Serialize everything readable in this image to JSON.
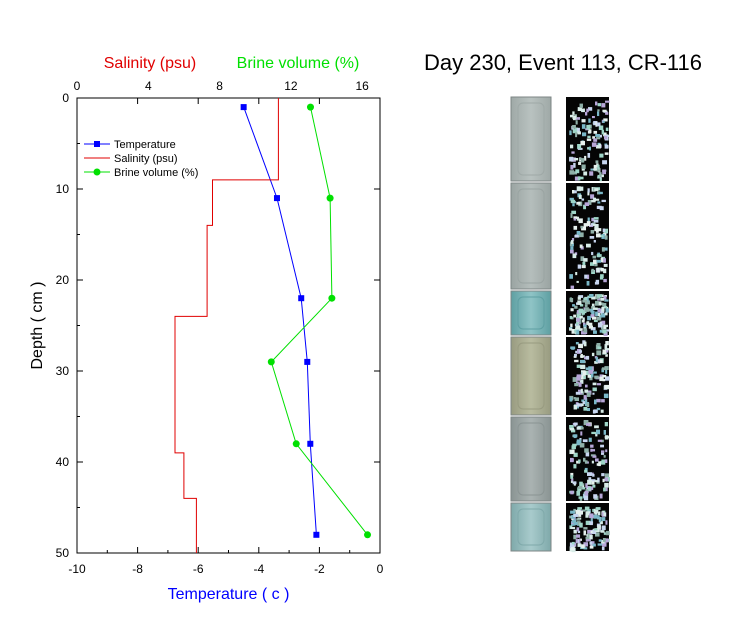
{
  "title": "Day 230, Event 113, CR-116",
  "colors": {
    "temperature": "#0000FF",
    "salinity": "#E00000",
    "brine": "#00E000",
    "axis": "#000000"
  },
  "chart_data": {
    "type": "line",
    "ylabel": "Depth ( cm )",
    "yticks": [
      0,
      10,
      20,
      30,
      40,
      50
    ],
    "ylim": [
      0,
      50
    ],
    "y_inverted": true,
    "bottom_axis": {
      "label": "Temperature ( c )",
      "ticks": [
        -10,
        -8,
        -6,
        -4,
        -2,
        0
      ],
      "lim": [
        -10,
        0
      ]
    },
    "top_axis": {
      "labels": [
        {
          "text": "Salinity (psu)",
          "color": "#E00000"
        },
        {
          "text": "Brine volume (%)",
          "color": "#00E000"
        }
      ],
      "ticks": [
        0,
        4,
        8,
        12,
        16
      ],
      "lim": [
        0,
        17
      ]
    },
    "legend": {
      "placement": "top-left",
      "entries": [
        "Temperature",
        "Salinity (psu)",
        "Brine volume (%)"
      ]
    },
    "series": [
      {
        "name": "Temperature",
        "axis": "bottom",
        "style": "line-square",
        "points": [
          [
            -4.5,
            1
          ],
          [
            -3.4,
            11
          ],
          [
            -2.6,
            22
          ],
          [
            -2.4,
            29
          ],
          [
            -2.3,
            38
          ],
          [
            -2.1,
            48
          ]
        ]
      },
      {
        "name": "Salinity (psu)",
        "axis": "top",
        "style": "step",
        "points": [
          [
            11.3,
            0
          ],
          [
            11.3,
            9
          ],
          [
            7.6,
            9
          ],
          [
            7.6,
            14
          ],
          [
            7.3,
            14
          ],
          [
            7.3,
            19
          ],
          [
            7.3,
            19
          ],
          [
            7.3,
            24
          ],
          [
            5.5,
            24
          ],
          [
            5.5,
            34
          ],
          [
            5.5,
            34
          ],
          [
            5.5,
            39
          ],
          [
            6.0,
            39
          ],
          [
            6.0,
            44
          ],
          [
            6.7,
            44
          ],
          [
            6.7,
            50
          ]
        ]
      },
      {
        "name": "Brine volume (%)",
        "axis": "top",
        "style": "line-circle",
        "points": [
          [
            13.1,
            1
          ],
          [
            14.2,
            11
          ],
          [
            14.3,
            22
          ],
          [
            10.9,
            29
          ],
          [
            12.3,
            38
          ],
          [
            16.3,
            48
          ]
        ]
      }
    ]
  },
  "images": {
    "panels": [
      {
        "name": "left-1",
        "colors": [
          "#b9c2c0",
          "#9fa9a7"
        ]
      },
      {
        "name": "left-2",
        "colors": [
          "#b5bebc",
          "#9aa4a2"
        ]
      },
      {
        "name": "left-3",
        "colors": [
          "#8fc4c6",
          "#5e9fa2"
        ]
      },
      {
        "name": "left-4",
        "colors": [
          "#b9bca0",
          "#989b80"
        ]
      },
      {
        "name": "left-5",
        "colors": [
          "#aab3b2",
          "#8a9493"
        ]
      },
      {
        "name": "left-6",
        "colors": [
          "#a8cbcc",
          "#7fa9aa"
        ]
      }
    ]
  }
}
